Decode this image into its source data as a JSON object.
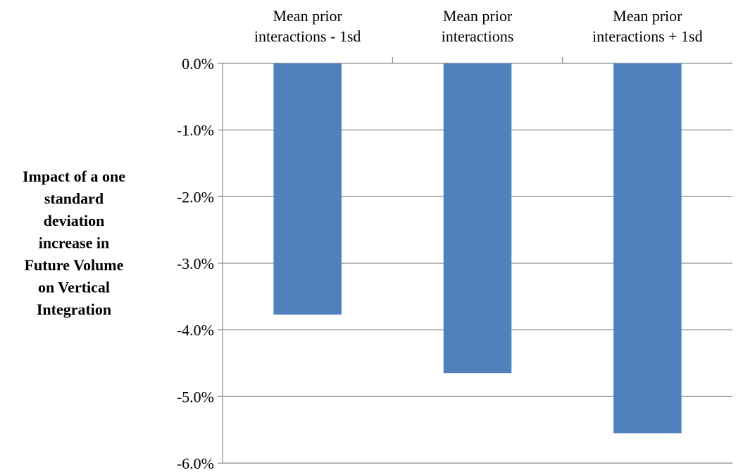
{
  "chart_data": {
    "type": "bar",
    "title": "",
    "xlabel": "",
    "ylabel": "Impact of a one standard deviation increase in Future Volume on Vertical Integration",
    "ylabel_lines": [
      "Impact of a one",
      "standard",
      "deviation",
      "increase in",
      "Future Volume",
      "on Vertical",
      "Integration"
    ],
    "categories": [
      "Mean prior interactions - 1sd",
      "Mean prior interactions",
      "Mean prior interactions + 1sd"
    ],
    "category_lines": [
      [
        "Mean prior",
        "interactions - 1sd"
      ],
      [
        "Mean prior",
        "interactions"
      ],
      [
        "Mean prior",
        "interactions + 1sd"
      ]
    ],
    "values": [
      -3.77,
      -4.65,
      -5.55
    ],
    "ylim": [
      -6.0,
      0.0
    ],
    "yticks": [
      0.0,
      -1.0,
      -2.0,
      -3.0,
      -4.0,
      -5.0,
      -6.0
    ],
    "ytick_labels": [
      "0.0%",
      "-1.0%",
      "-2.0%",
      "-3.0%",
      "-4.0%",
      "-5.0%",
      "-6.0%"
    ],
    "category_axis_position": "top",
    "grid": true,
    "bar_color": "#4f81bd",
    "grid_color": "#8c8c8c"
  }
}
